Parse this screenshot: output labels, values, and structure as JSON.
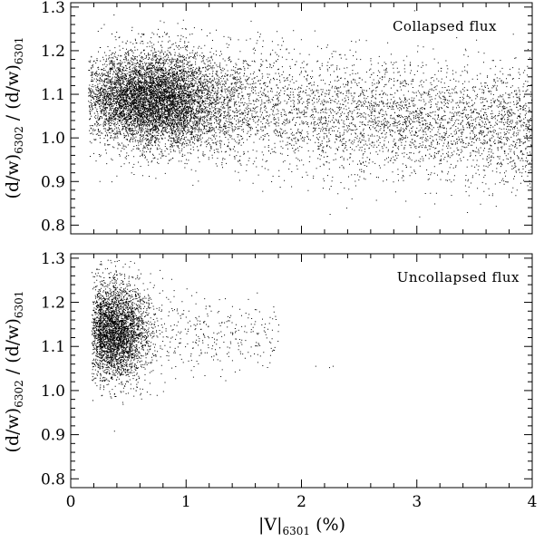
{
  "chart_data": [
    {
      "type": "scatter",
      "panel": "top",
      "annotation": "Collapsed flux",
      "ylabel": {
        "main": "(d/w)",
        "sub1": "6302",
        "sep": " / ",
        "main2": "(d/w)",
        "sub2": "6301"
      },
      "xlim": [
        0,
        4
      ],
      "ylim": [
        0.78,
        1.31
      ],
      "yticks": [
        "0.8",
        "0.9",
        "1.0",
        "1.1",
        "1.2",
        "1.3"
      ],
      "ytick_values": [
        0.8,
        0.9,
        1.0,
        1.1,
        1.2,
        1.3
      ],
      "point_color": "#000000",
      "n_points_approx": 12000,
      "distribution": "dense cloud centred near x=0.6, y=1.09; ratio slowly decreasing to about 1.02 at x=4; spread +/-0.1"
    },
    {
      "type": "scatter",
      "panel": "bottom",
      "annotation": "Uncollapsed flux",
      "ylabel": {
        "main": "(d/w)",
        "sub1": "6302",
        "sep": " / ",
        "main2": "(d/w)",
        "sub2": "6301"
      },
      "xlabel": {
        "main": "|V|",
        "sub": "6301",
        "unit": " (%)"
      },
      "xlim": [
        0,
        4
      ],
      "ylim": [
        0.78,
        1.31
      ],
      "xticks": [
        "0",
        "1",
        "2",
        "3",
        "4"
      ],
      "xtick_values": [
        0,
        1,
        2,
        3,
        4
      ],
      "yticks": [
        "0.8",
        "0.9",
        "1.0",
        "1.1",
        "1.2",
        "1.3"
      ],
      "ytick_values": [
        0.8,
        0.9,
        1.0,
        1.1,
        1.2,
        1.3
      ],
      "point_color": "#000000",
      "n_points_approx": 4000,
      "distribution": "compact cloud centred near x=0.4, y=1.14; sparse tail out to x=1.8; two isolated points near x=2.1-2.3, y=1.05"
    }
  ]
}
